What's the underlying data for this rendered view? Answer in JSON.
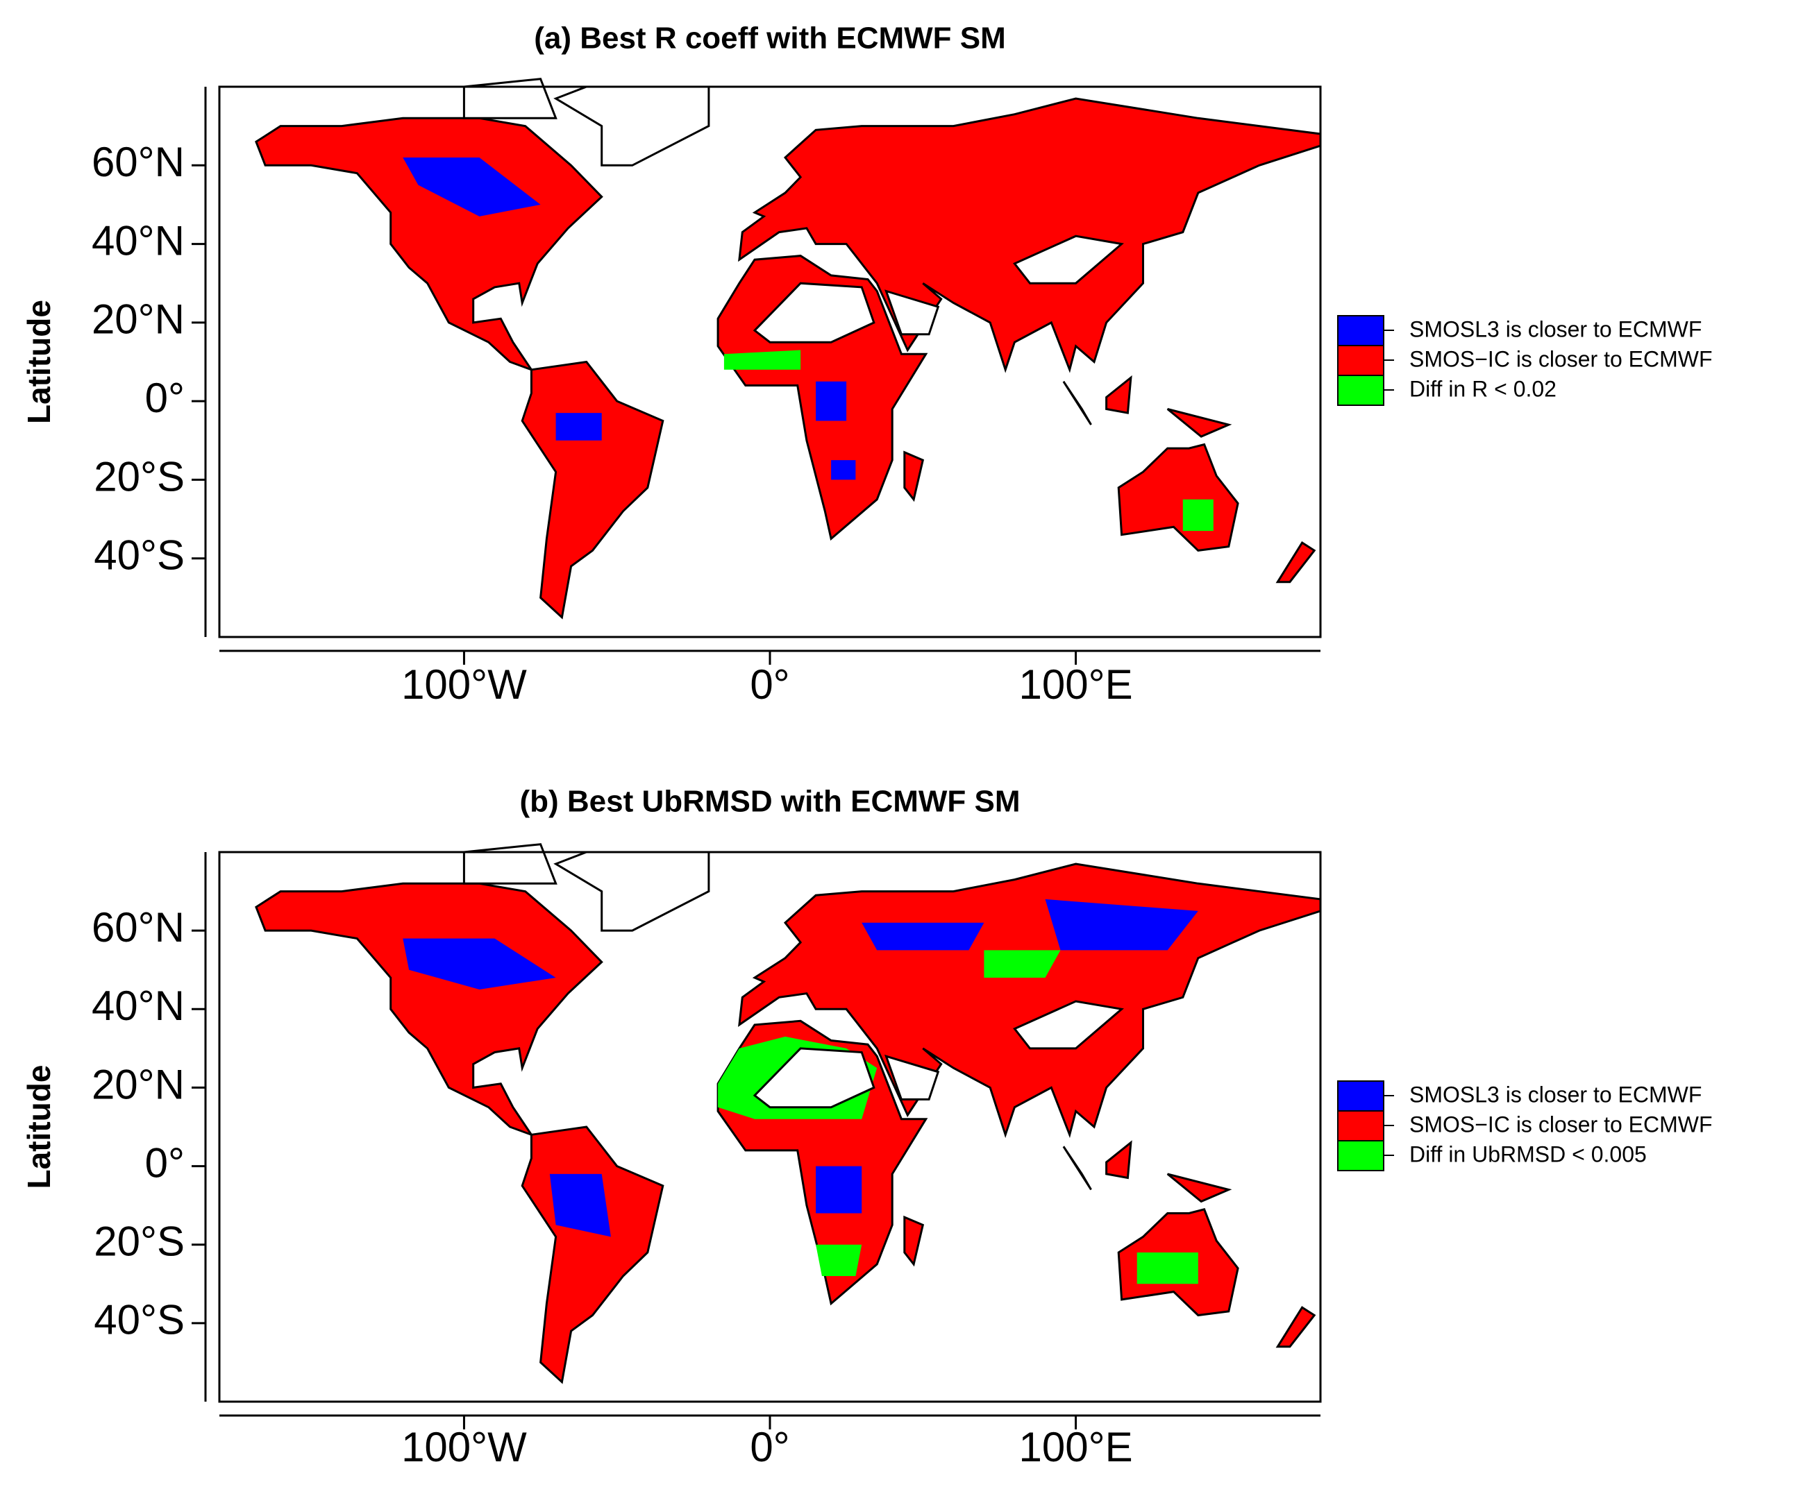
{
  "panels": [
    {
      "title": "(a) Best R coeff with ECMWF SM",
      "y_label": "Latitude",
      "xlim": [
        -180,
        180
      ],
      "ylim": [
        -60,
        80
      ],
      "x_ticks": [
        {
          "value": -100,
          "label": "100°W"
        },
        {
          "value": 0,
          "label": "0°"
        },
        {
          "value": 100,
          "label": "100°E"
        }
      ],
      "y_ticks": [
        {
          "value": 60,
          "label": "60°N"
        },
        {
          "value": 40,
          "label": "40°N"
        },
        {
          "value": 20,
          "label": "20°N"
        },
        {
          "value": 0,
          "label": "0°"
        },
        {
          "value": -20,
          "label": "20°S"
        },
        {
          "value": -40,
          "label": "40°S"
        }
      ],
      "legend": [
        {
          "label": "SMOSL3 is closer to ECMWF",
          "color": "#0000ff"
        },
        {
          "label": "SMOS−IC is closer to ECMWF",
          "color": "#ff0000"
        },
        {
          "label": "Diff in R < 0.02",
          "color": "#00ff00"
        }
      ]
    },
    {
      "title": "(b) Best UbRMSD with ECMWF SM",
      "y_label": "Latitude",
      "xlim": [
        -180,
        180
      ],
      "ylim": [
        -60,
        80
      ],
      "x_ticks": [
        {
          "value": -100,
          "label": "100°W"
        },
        {
          "value": 0,
          "label": "0°"
        },
        {
          "value": 100,
          "label": "100°E"
        }
      ],
      "y_ticks": [
        {
          "value": 60,
          "label": "60°N"
        },
        {
          "value": 40,
          "label": "40°N"
        },
        {
          "value": 20,
          "label": "20°N"
        },
        {
          "value": 0,
          "label": "0°"
        },
        {
          "value": -20,
          "label": "20°S"
        },
        {
          "value": -40,
          "label": "40°S"
        }
      ],
      "legend": [
        {
          "label": "SMOSL3 is closer to ECMWF",
          "color": "#0000ff"
        },
        {
          "label": "SMOS−IC is closer to ECMWF",
          "color": "#ff0000"
        },
        {
          "label": "Diff in UbRMSD < 0.005",
          "color": "#00ff00"
        }
      ]
    }
  ]
}
